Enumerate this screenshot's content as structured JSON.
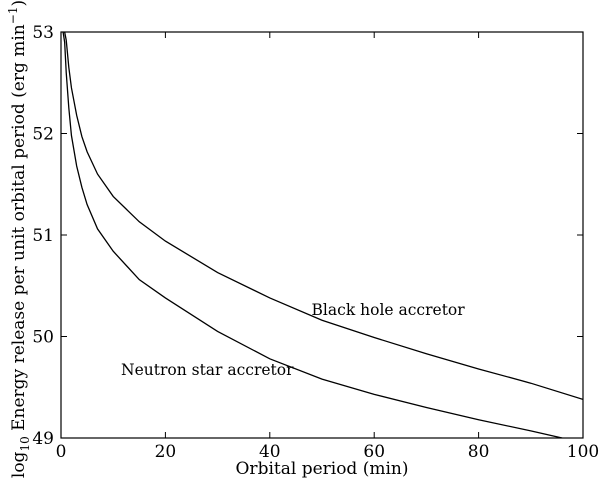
{
  "chart_data": {
    "type": "line",
    "title": "",
    "xlabel": "Orbital period (min)",
    "ylabel_parts": {
      "log": "log",
      "log_sub": "10",
      "main": " Energy release per unit orbital period (erg min",
      "exp": "−1",
      "close": ")"
    },
    "xlim": [
      0,
      100
    ],
    "ylim": [
      49,
      53
    ],
    "xticks": [
      0,
      20,
      40,
      60,
      80,
      100
    ],
    "yticks": [
      49,
      50,
      51,
      52,
      53
    ],
    "grid": false,
    "series": [
      {
        "name": "Black hole accretor",
        "x": [
          0.7,
          1,
          1.5,
          2,
          3,
          4,
          5,
          7,
          10,
          15,
          20,
          30,
          40,
          50,
          60,
          70,
          80,
          90,
          100
        ],
        "y": [
          53.0,
          52.92,
          52.65,
          52.45,
          52.18,
          51.97,
          51.82,
          51.6,
          51.38,
          51.13,
          50.94,
          50.63,
          50.38,
          50.16,
          49.99,
          49.83,
          49.68,
          49.54,
          49.38
        ]
      },
      {
        "name": "Neutron star accretor",
        "x": [
          0.4,
          0.7,
          1,
          1.5,
          2,
          3,
          4,
          5,
          7,
          10,
          15,
          20,
          30,
          40,
          50,
          60,
          70,
          80,
          90,
          96
        ],
        "y": [
          53.0,
          52.9,
          52.6,
          52.25,
          51.98,
          51.68,
          51.47,
          51.3,
          51.06,
          50.84,
          50.56,
          50.38,
          50.05,
          49.78,
          49.58,
          49.43,
          49.3,
          49.18,
          49.07,
          49.0
        ]
      }
    ],
    "annotations": [
      {
        "text": "Black hole accretor",
        "x": 48,
        "y": 50.21
      },
      {
        "text": "Neutron star accretor",
        "x": 11.5,
        "y": 49.62
      }
    ]
  }
}
